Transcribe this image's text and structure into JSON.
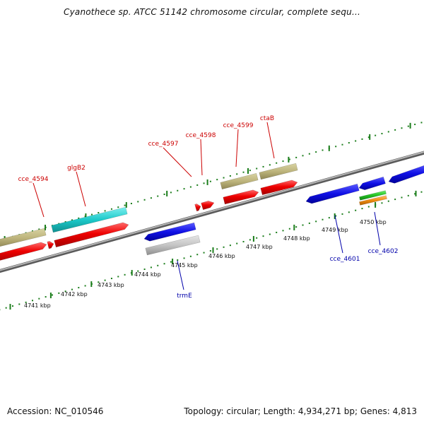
{
  "title": "Cyanothece sp. ATCC 51142 chromosome circular, complete sequ...",
  "footer": {
    "accession": "Accession: NC_010546",
    "summary": "Topology: circular; Length: 4,934,271 bp; Genes: 4,813"
  },
  "colors": {
    "forward_label": "#cc0000",
    "reverse_label": "#0000aa",
    "tick": "#1b7d1b",
    "backbone": "#8c8c8c"
  },
  "scale_labels": [
    "4741 kbp",
    "4742 kbp",
    "4743 kbp",
    "4744 kbp",
    "4745 kbp",
    "4746 kbp",
    "4747 kbp",
    "4748 kbp",
    "4749 kbp",
    "4750 kbp"
  ],
  "forward_gene_labels": [
    "cce_4594",
    "glgB2",
    "cce_4597",
    "cce_4598",
    "cce_4599",
    "ctaB"
  ],
  "reverse_gene_labels": [
    "trmE",
    "cce_4601",
    "cce_4602"
  ]
}
